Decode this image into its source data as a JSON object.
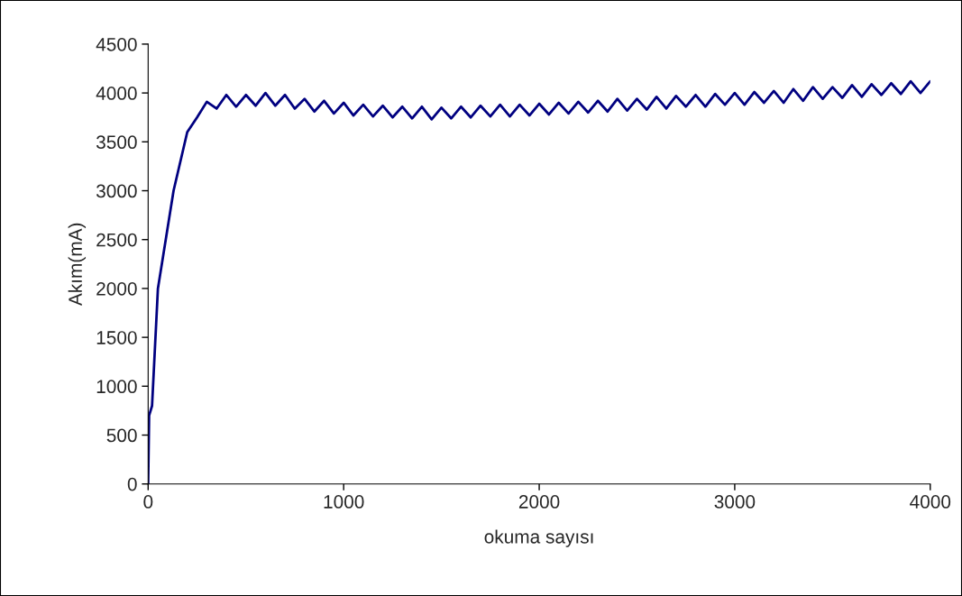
{
  "chart_data": {
    "type": "line",
    "xlabel": "okuma sayısı",
    "ylabel": "Akım(mA)",
    "x": [
      0,
      5,
      20,
      50,
      130,
      200,
      250,
      300,
      350,
      400,
      450,
      500,
      550,
      600,
      650,
      700,
      750,
      800,
      850,
      900,
      950,
      1000,
      1050,
      1100,
      1150,
      1200,
      1250,
      1300,
      1350,
      1400,
      1450,
      1500,
      1550,
      1600,
      1650,
      1700,
      1750,
      1800,
      1850,
      1900,
      1950,
      2000,
      2050,
      2100,
      2150,
      2200,
      2250,
      2300,
      2350,
      2400,
      2450,
      2500,
      2550,
      2600,
      2650,
      2700,
      2750,
      2800,
      2850,
      2900,
      2950,
      3000,
      3050,
      3100,
      3150,
      3200,
      3250,
      3300,
      3350,
      3400,
      3450,
      3500,
      3550,
      3600,
      3650,
      3700,
      3750,
      3800,
      3850,
      3900,
      3950,
      4000
    ],
    "series": [
      {
        "color": "#000080",
        "values": [
          0,
          700,
          800,
          2000,
          3000,
          3600,
          3750,
          3910,
          3840,
          3980,
          3860,
          3980,
          3870,
          4000,
          3870,
          3980,
          3840,
          3940,
          3810,
          3920,
          3790,
          3900,
          3770,
          3880,
          3760,
          3870,
          3750,
          3860,
          3740,
          3860,
          3730,
          3850,
          3740,
          3860,
          3750,
          3870,
          3760,
          3880,
          3760,
          3880,
          3770,
          3890,
          3780,
          3900,
          3790,
          3910,
          3800,
          3920,
          3810,
          3940,
          3820,
          3940,
          3830,
          3960,
          3840,
          3970,
          3860,
          3980,
          3860,
          3990,
          3880,
          4000,
          3880,
          4010,
          3900,
          4020,
          3900,
          4040,
          3920,
          4060,
          3940,
          4060,
          3950,
          4080,
          3960,
          4090,
          3980,
          4100,
          3990,
          4120,
          4000,
          4120
        ]
      }
    ],
    "xlim": [
      0,
      4000
    ],
    "xticks": [
      0,
      1000,
      2000,
      3000,
      4000
    ],
    "ylim": [
      0,
      4500
    ],
    "yticks": [
      0,
      500,
      1000,
      1500,
      2000,
      2500,
      3000,
      3500,
      4000,
      4500
    ],
    "grid": false,
    "marker": "none",
    "line_style": "solid"
  }
}
